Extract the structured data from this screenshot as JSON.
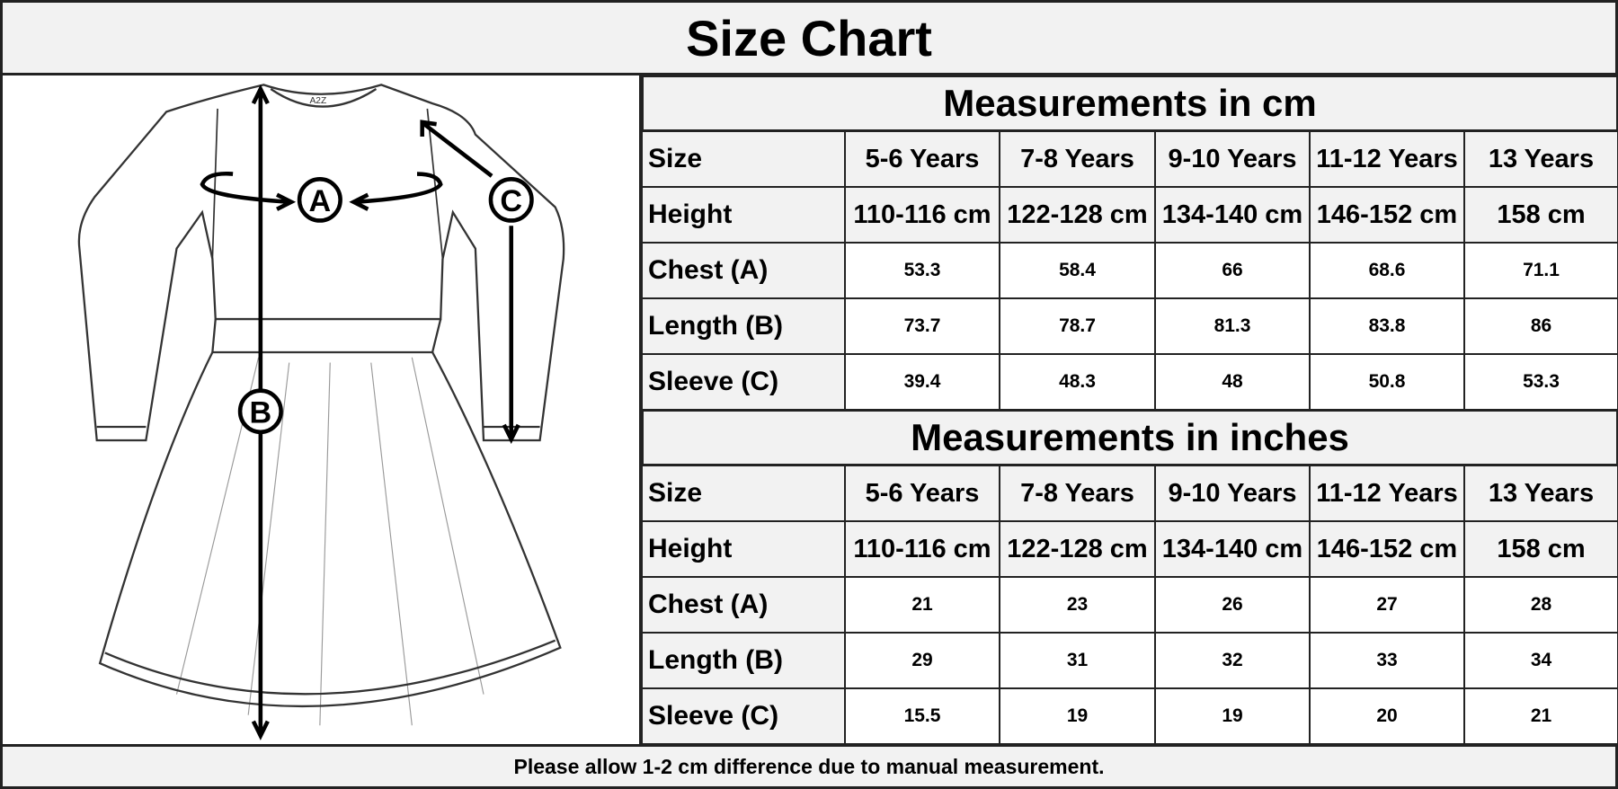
{
  "title": "Size Chart",
  "illustration": {
    "labels": [
      "A",
      "B",
      "C"
    ],
    "logo_text": "A2Z"
  },
  "cm_table": {
    "title": "Measurements in cm",
    "rows": [
      {
        "label": "Size",
        "values": [
          "5-6 Years",
          "7-8 Years",
          "9-10 Years",
          "11-12 Years",
          "13 Years"
        ]
      },
      {
        "label": "Height",
        "values": [
          "110-116 cm",
          "122-128 cm",
          "134-140 cm",
          "146-152 cm",
          "158 cm"
        ]
      },
      {
        "label": "Chest (A)",
        "values": [
          "53.3",
          "58.4",
          "66",
          "68.6",
          "71.1"
        ]
      },
      {
        "label": "Length (B)",
        "values": [
          "73.7",
          "78.7",
          "81.3",
          "83.8",
          "86"
        ]
      },
      {
        "label": "Sleeve (C)",
        "values": [
          "39.4",
          "48.3",
          "48",
          "50.8",
          "53.3"
        ]
      }
    ]
  },
  "inch_table": {
    "title": "Measurements in inches",
    "rows": [
      {
        "label": "Size",
        "values": [
          "5-6 Years",
          "7-8 Years",
          "9-10 Years",
          "11-12 Years",
          "13 Years"
        ]
      },
      {
        "label": "Height",
        "values": [
          "110-116 cm",
          "122-128 cm",
          "134-140 cm",
          "146-152 cm",
          "158 cm"
        ]
      },
      {
        "label": "Chest (A)",
        "values": [
          "21",
          "23",
          "26",
          "27",
          "28"
        ]
      },
      {
        "label": "Length (B)",
        "values": [
          "29",
          "31",
          "32",
          "33",
          "34"
        ]
      },
      {
        "label": "Sleeve (C)",
        "values": [
          "15.5",
          "19",
          "19",
          "20",
          "21"
        ]
      }
    ]
  },
  "footer": "Please allow 1-2 cm difference due to manual measurement."
}
